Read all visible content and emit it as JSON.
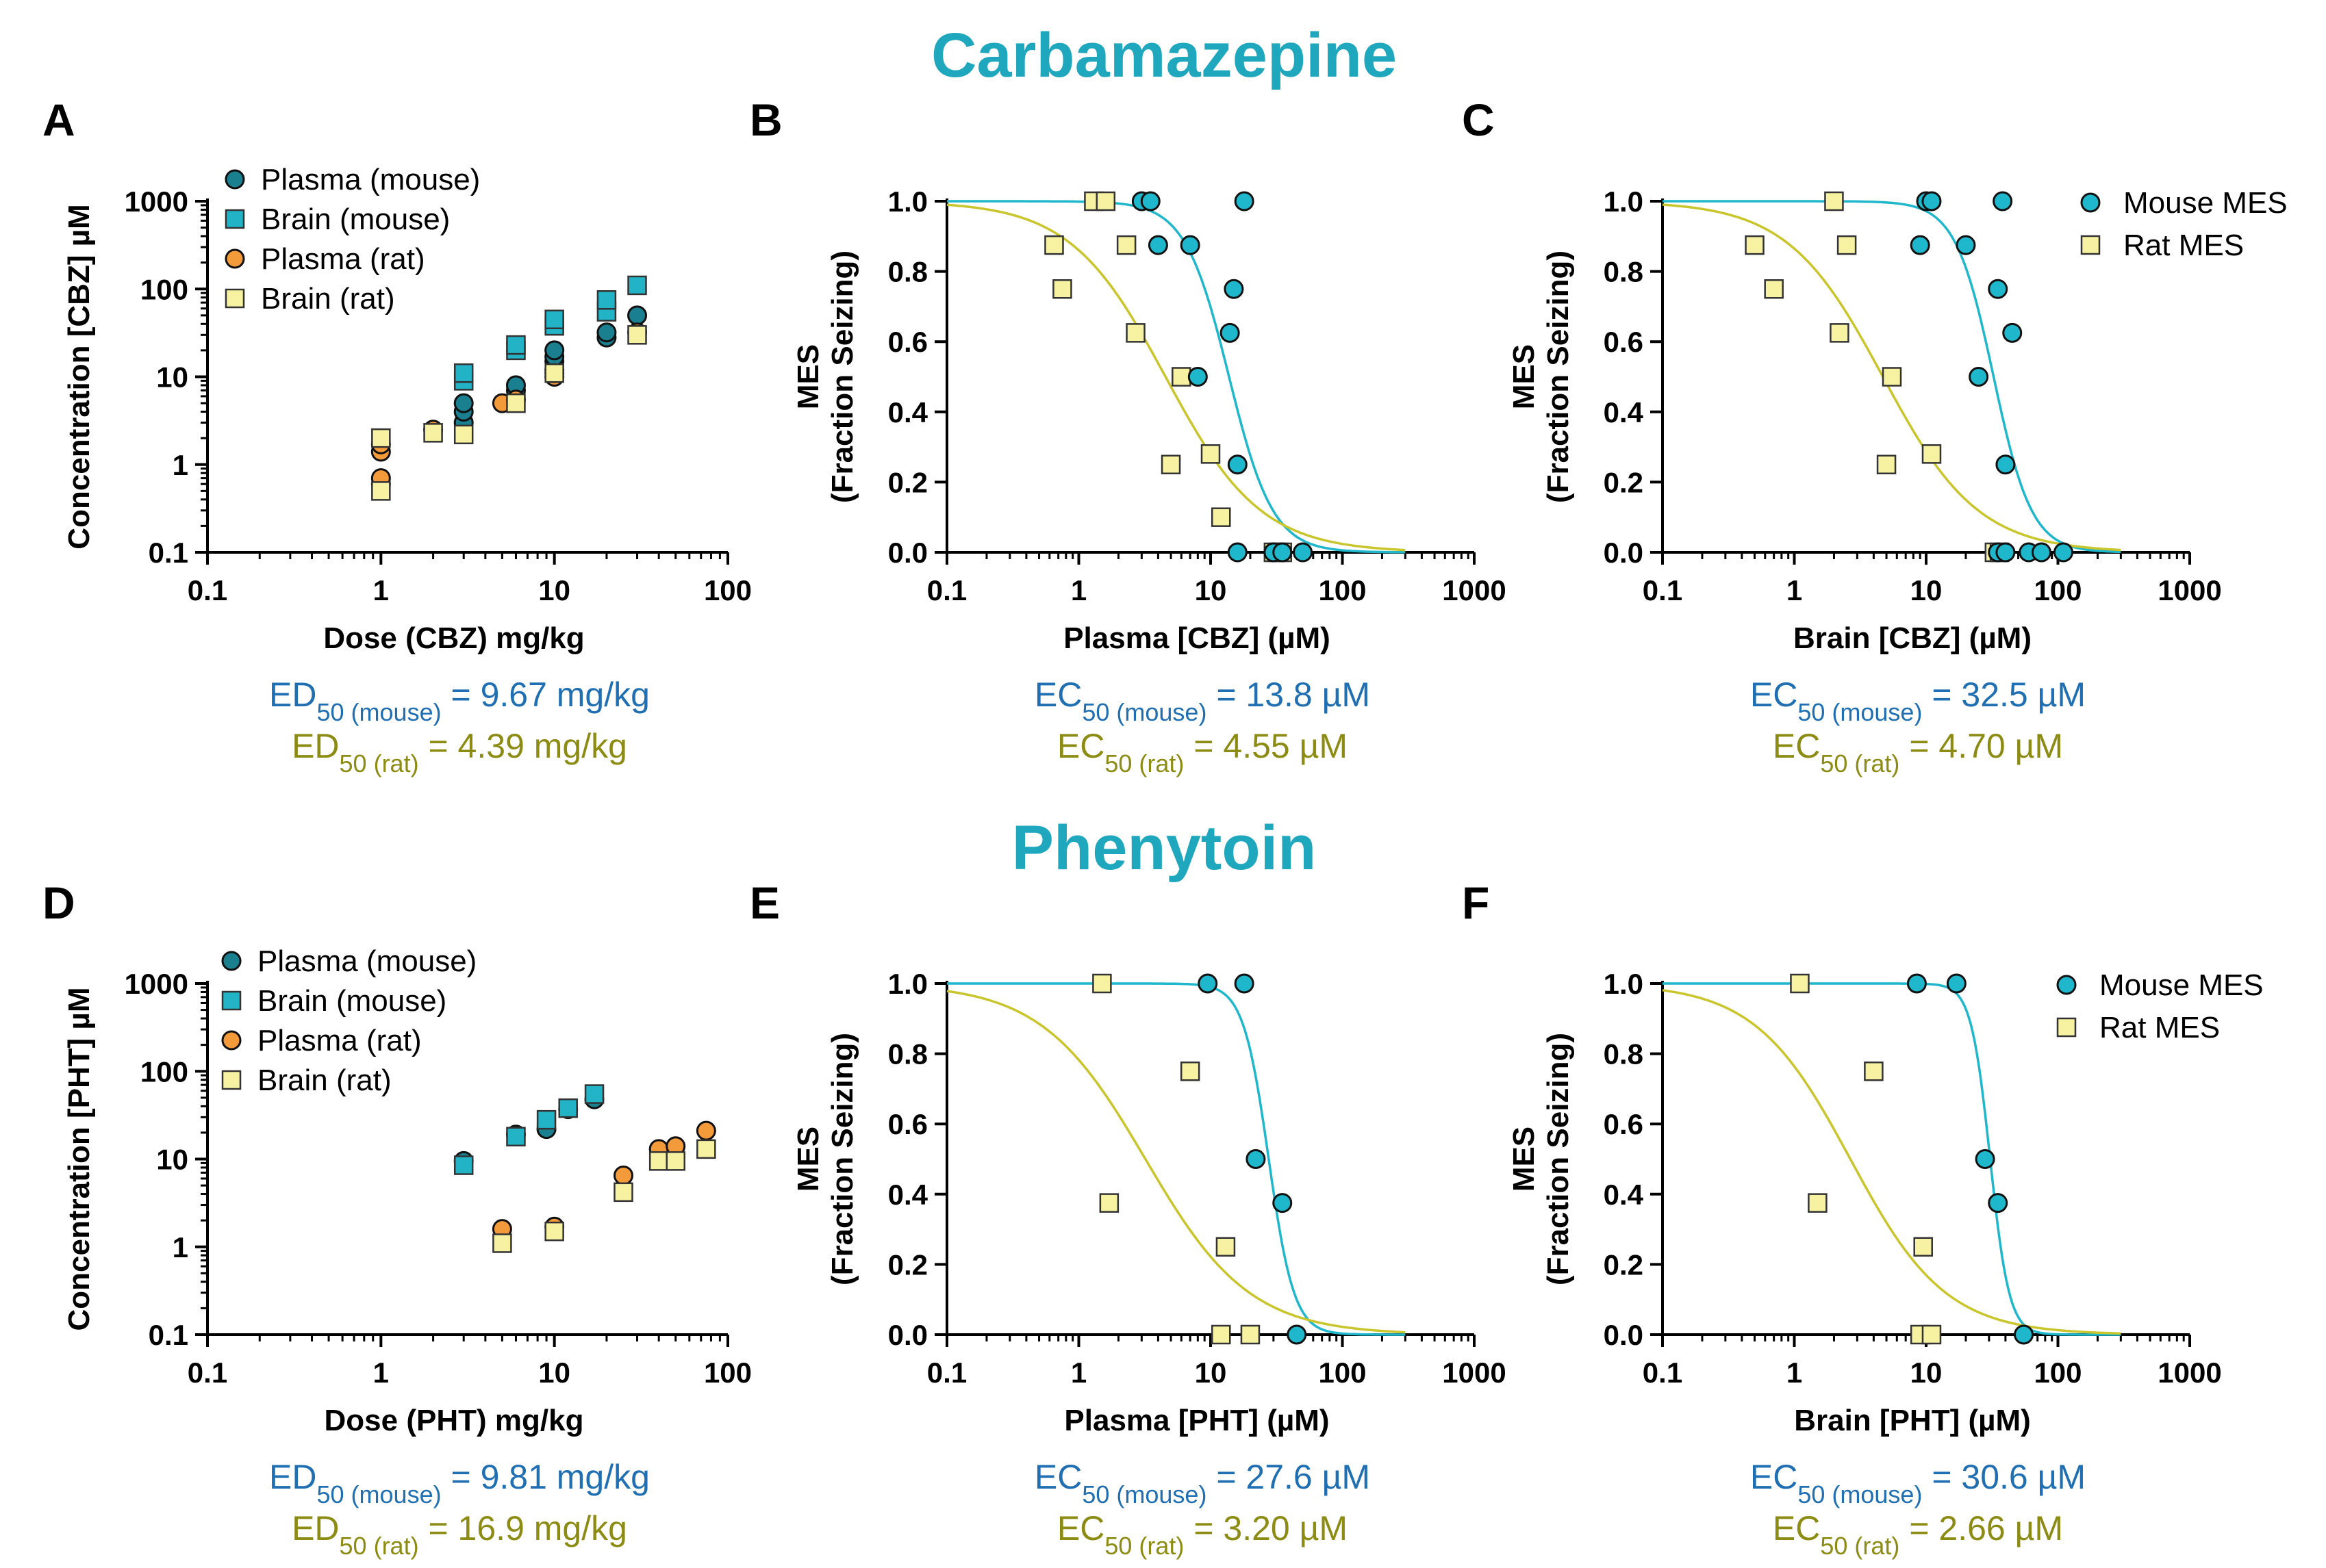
{
  "colors": {
    "title": "#1ea7bd",
    "mouse_text": "#1f6fb2",
    "rat_text": "#8c8c14",
    "mouse_plasma": "#1a7f8e",
    "mouse_brain": "#23b3c6",
    "rat_plasma": "#f39a3b",
    "rat_brain": "#f6f2a2",
    "mouse_curve": "#1fb7cb",
    "rat_curve": "#c9c52d",
    "mouse_mes": "#1fb7cb",
    "rat_mes": "#f6f2a2"
  },
  "sections": [
    {
      "title": "Carbamazepine"
    },
    {
      "title": "Phenytoin"
    }
  ],
  "legend_exposure": {
    "plasma_mouse": "Plasma (mouse)",
    "brain_mouse": "Brain (mouse)",
    "plasma_rat": "Plasma (rat)",
    "brain_rat": "Brain (rat)"
  },
  "legend_mes": {
    "mouse": "Mouse MES",
    "rat": "Rat MES"
  },
  "chart_data": [
    {
      "panel": "A",
      "type": "scatter",
      "drug": "Carbamazepine",
      "xlabel": "Dose (CBZ) mg/kg",
      "ylabel": "Concentration [CBZ] µM",
      "xscale": "log",
      "yscale": "log",
      "xlim": [
        0.1,
        100
      ],
      "ylim": [
        0.1,
        1000
      ],
      "xticks": [
        "0.1",
        "1",
        "10",
        "100"
      ],
      "yticks": [
        "0.1",
        "1",
        "10",
        "100",
        "1000"
      ],
      "series": [
        {
          "name": "Plasma (mouse)",
          "marker": "circle",
          "color": "mouse_plasma",
          "points": [
            [
              3,
              3
            ],
            [
              3,
              4
            ],
            [
              3,
              5
            ],
            [
              6,
              7
            ],
            [
              6,
              8
            ],
            [
              10,
              12
            ],
            [
              10,
              15
            ],
            [
              10,
              17
            ],
            [
              10,
              20
            ],
            [
              20,
              28
            ],
            [
              20,
              32
            ],
            [
              30,
              50
            ]
          ]
        },
        {
          "name": "Brain (mouse)",
          "marker": "square",
          "color": "mouse_brain",
          "points": [
            [
              3,
              9
            ],
            [
              3,
              11
            ],
            [
              6,
              20
            ],
            [
              6,
              23
            ],
            [
              10,
              38
            ],
            [
              10,
              45
            ],
            [
              20,
              55
            ],
            [
              20,
              75
            ],
            [
              30,
              110
            ]
          ]
        },
        {
          "name": "Plasma (rat)",
          "marker": "circle",
          "color": "rat_plasma",
          "points": [
            [
              1,
              0.6
            ],
            [
              1,
              0.7
            ],
            [
              1,
              1.4
            ],
            [
              1,
              1.7
            ],
            [
              2,
              2.5
            ],
            [
              5,
              5
            ],
            [
              6,
              5.5
            ],
            [
              10,
              10
            ],
            [
              10,
              11
            ],
            [
              30,
              32
            ]
          ]
        },
        {
          "name": "Brain (rat)",
          "marker": "square",
          "color": "rat_brain",
          "points": [
            [
              1,
              0.5
            ],
            [
              1,
              2
            ],
            [
              2,
              2.3
            ],
            [
              3,
              2.2
            ],
            [
              6,
              5
            ],
            [
              10,
              11
            ],
            [
              30,
              30
            ]
          ]
        }
      ],
      "stats": [
        {
          "main": "ED",
          "sub": "50 (mouse)",
          "value": " = 9.67 mg/kg",
          "color": "mouse_text"
        },
        {
          "main": "ED",
          "sub": "50 (rat)",
          "value": " = 4.39 mg/kg",
          "color": "rat_text"
        }
      ]
    },
    {
      "panel": "B",
      "type": "scatter",
      "drug": "Carbamazepine",
      "xlabel": "Plasma [CBZ] (µM)",
      "ylabel": [
        "MES",
        "(Fraction Seizing)"
      ],
      "xscale": "log",
      "yscale": "linear",
      "xlim": [
        0.1,
        1000
      ],
      "ylim": [
        0,
        1
      ],
      "xticks": [
        "0.1",
        "1",
        "10",
        "100",
        "1000"
      ],
      "yticks": [
        "0.0",
        "0.2",
        "0.4",
        "0.6",
        "0.8",
        "1.0"
      ],
      "series": [
        {
          "name": "Mouse MES",
          "marker": "circle",
          "color": "mouse_mes",
          "points": [
            [
              3,
              1
            ],
            [
              3.5,
              1
            ],
            [
              4,
              0.875
            ],
            [
              7,
              0.875
            ],
            [
              18,
              1
            ],
            [
              8,
              0.5
            ],
            [
              15,
              0.75
            ],
            [
              14,
              0.625
            ],
            [
              16,
              0.25
            ],
            [
              16,
              0
            ],
            [
              30,
              0
            ],
            [
              50,
              0
            ],
            [
              35,
              0
            ]
          ]
        },
        {
          "name": "Rat MES",
          "marker": "square",
          "color": "rat_mes",
          "points": [
            [
              0.65,
              0.875
            ],
            [
              0.75,
              0.75
            ],
            [
              1.3,
              1
            ],
            [
              1.6,
              1
            ],
            [
              2.3,
              0.875
            ],
            [
              2.7,
              0.625
            ],
            [
              6,
              0.5
            ],
            [
              5,
              0.25
            ],
            [
              10,
              0.28
            ],
            [
              12,
              0.1
            ],
            [
              30,
              0
            ],
            [
              33,
              0
            ],
            [
              35,
              0
            ]
          ]
        }
      ],
      "curves": [
        {
          "name": "Mouse MES fit",
          "ec50": 13.8,
          "hill": 2.6,
          "color": "mouse_curve"
        },
        {
          "name": "Rat MES fit",
          "ec50": 4.55,
          "hill": 1.2,
          "color": "rat_curve"
        }
      ],
      "stats": [
        {
          "main": "EC",
          "sub": "50 (mouse)",
          "value": " = 13.8 µM",
          "color": "mouse_text"
        },
        {
          "main": "EC",
          "sub": "50 (rat)",
          "value": " = 4.55 µM",
          "color": "rat_text"
        }
      ]
    },
    {
      "panel": "C",
      "type": "scatter",
      "drug": "Carbamazepine",
      "xlabel": "Brain [CBZ] (µM)",
      "ylabel": [
        "MES",
        "(Fraction Seizing)"
      ],
      "xscale": "log",
      "yscale": "linear",
      "xlim": [
        0.1,
        1000
      ],
      "ylim": [
        0,
        1
      ],
      "xticks": [
        "0.1",
        "1",
        "10",
        "100",
        "1000"
      ],
      "yticks": [
        "0.0",
        "0.2",
        "0.4",
        "0.6",
        "0.8",
        "1.0"
      ],
      "series": [
        {
          "name": "Mouse MES",
          "marker": "circle",
          "color": "mouse_mes",
          "points": [
            [
              10,
              1
            ],
            [
              11,
              1
            ],
            [
              38,
              1
            ],
            [
              9,
              0.875
            ],
            [
              20,
              0.875
            ],
            [
              35,
              0.75
            ],
            [
              25,
              0.5
            ],
            [
              45,
              0.625
            ],
            [
              40,
              0.25
            ],
            [
              35,
              0
            ],
            [
              40,
              0
            ],
            [
              60,
              0
            ],
            [
              75,
              0
            ],
            [
              110,
              0
            ]
          ]
        },
        {
          "name": "Rat MES",
          "marker": "square",
          "color": "rat_mes",
          "points": [
            [
              2,
              1
            ],
            [
              0.5,
              0.875
            ],
            [
              0.7,
              0.75
            ],
            [
              2.5,
              0.875
            ],
            [
              2.2,
              0.625
            ],
            [
              5.5,
              0.5
            ],
            [
              5,
              0.25
            ],
            [
              11,
              0.28
            ],
            [
              33,
              0
            ],
            [
              36,
              0
            ]
          ]
        }
      ],
      "curves": [
        {
          "name": "Mouse MES fit",
          "ec50": 32.5,
          "hill": 3.0,
          "color": "mouse_curve"
        },
        {
          "name": "Rat MES fit",
          "ec50": 4.7,
          "hill": 1.2,
          "color": "rat_curve"
        }
      ],
      "stats": [
        {
          "main": "EC",
          "sub": "50 (mouse)",
          "value": " = 32.5 µM",
          "color": "mouse_text"
        },
        {
          "main": "EC",
          "sub": "50 (rat)",
          "value": " = 4.70 µM",
          "color": "rat_text"
        }
      ]
    },
    {
      "panel": "D",
      "type": "scatter",
      "drug": "Phenytoin",
      "xlabel": "Dose (PHT) mg/kg",
      "ylabel": "Concentration [PHT] µM",
      "xscale": "log",
      "yscale": "log",
      "xlim": [
        0.1,
        100
      ],
      "ylim": [
        0.1,
        1000
      ],
      "xticks": [
        "0.1",
        "1",
        "10",
        "100"
      ],
      "yticks": [
        "0.1",
        "1",
        "10",
        "100",
        "1000"
      ],
      "series": [
        {
          "name": "Plasma (mouse)",
          "marker": "circle",
          "color": "mouse_plasma",
          "points": [
            [
              3,
              9.5
            ],
            [
              6,
              19
            ],
            [
              9,
              22
            ],
            [
              12,
              37
            ],
            [
              17,
              48
            ]
          ]
        },
        {
          "name": "Brain (mouse)",
          "marker": "square",
          "color": "mouse_brain",
          "points": [
            [
              3,
              8.5
            ],
            [
              6,
              18
            ],
            [
              9,
              28
            ],
            [
              12,
              38
            ],
            [
              17,
              55
            ]
          ]
        },
        {
          "name": "Plasma (rat)",
          "marker": "circle",
          "color": "rat_plasma",
          "points": [
            [
              5,
              1.6
            ],
            [
              10,
              1.7
            ],
            [
              25,
              6.5
            ],
            [
              40,
              13
            ],
            [
              50,
              14
            ],
            [
              75,
              21
            ]
          ]
        },
        {
          "name": "Brain (rat)",
          "marker": "square",
          "color": "rat_brain",
          "points": [
            [
              5,
              1.1
            ],
            [
              10,
              1.5
            ],
            [
              25,
              4.2
            ],
            [
              40,
              9.5
            ],
            [
              50,
              9.5
            ],
            [
              75,
              13
            ]
          ]
        }
      ],
      "stats": [
        {
          "main": "ED",
          "sub": "50 (mouse)",
          "value": " = 9.81 mg/kg",
          "color": "mouse_text"
        },
        {
          "main": "ED",
          "sub": "50 (rat)",
          "value": " = 16.9 mg/kg",
          "color": "rat_text"
        }
      ]
    },
    {
      "panel": "E",
      "type": "scatter",
      "drug": "Phenytoin",
      "xlabel": "Plasma [PHT] (µM)",
      "ylabel": [
        "MES",
        "(Fraction Seizing)"
      ],
      "xscale": "log",
      "yscale": "linear",
      "xlim": [
        0.1,
        1000
      ],
      "ylim": [
        0,
        1
      ],
      "xticks": [
        "0.1",
        "1",
        "10",
        "100",
        "1000"
      ],
      "yticks": [
        "0.0",
        "0.2",
        "0.4",
        "0.6",
        "0.8",
        "1.0"
      ],
      "series": [
        {
          "name": "Mouse MES",
          "marker": "circle",
          "color": "mouse_mes",
          "points": [
            [
              9.5,
              1
            ],
            [
              18,
              1
            ],
            [
              22,
              0.5
            ],
            [
              35,
              0.375
            ],
            [
              45,
              0
            ]
          ]
        },
        {
          "name": "Rat MES",
          "marker": "square",
          "color": "rat_mes",
          "points": [
            [
              1.5,
              1
            ],
            [
              1.7,
              0.375
            ],
            [
              7,
              0.75
            ],
            [
              13,
              0.25
            ],
            [
              12,
              0
            ],
            [
              20,
              0
            ]
          ]
        }
      ],
      "curves": [
        {
          "name": "Mouse MES fit",
          "ec50": 27.6,
          "hill": 4.5,
          "color": "mouse_curve"
        },
        {
          "name": "Rat MES fit",
          "ec50": 3.2,
          "hill": 1.1,
          "color": "rat_curve"
        }
      ],
      "stats": [
        {
          "main": "EC",
          "sub": "50 (mouse)",
          "value": " = 27.6 µM",
          "color": "mouse_text"
        },
        {
          "main": "EC",
          "sub": "50 (rat)",
          "value": " = 3.20 µM",
          "color": "rat_text"
        }
      ]
    },
    {
      "panel": "F",
      "type": "scatter",
      "drug": "Phenytoin",
      "xlabel": "Brain [PHT] (µM)",
      "ylabel": [
        "MES",
        "(Fraction Seizing)"
      ],
      "xscale": "log",
      "yscale": "linear",
      "xlim": [
        0.1,
        1000
      ],
      "ylim": [
        0,
        1
      ],
      "xticks": [
        "0.1",
        "1",
        "10",
        "100",
        "1000"
      ],
      "yticks": [
        "0.0",
        "0.2",
        "0.4",
        "0.6",
        "0.8",
        "1.0"
      ],
      "series": [
        {
          "name": "Mouse MES",
          "marker": "circle",
          "color": "mouse_mes",
          "points": [
            [
              8.5,
              1
            ],
            [
              17,
              1
            ],
            [
              28,
              0.5
            ],
            [
              35,
              0.375
            ],
            [
              55,
              0
            ]
          ]
        },
        {
          "name": "Rat MES",
          "marker": "square",
          "color": "rat_mes",
          "points": [
            [
              1.1,
              1
            ],
            [
              1.5,
              0.375
            ],
            [
              4,
              0.75
            ],
            [
              9.5,
              0.25
            ],
            [
              9,
              0
            ],
            [
              11,
              0
            ]
          ]
        }
      ],
      "curves": [
        {
          "name": "Mouse MES fit",
          "ec50": 30.6,
          "hill": 6.0,
          "color": "mouse_curve"
        },
        {
          "name": "Rat MES fit",
          "ec50": 2.66,
          "hill": 1.2,
          "color": "rat_curve"
        }
      ],
      "stats": [
        {
          "main": "EC",
          "sub": "50 (mouse)",
          "value": " = 30.6 µM",
          "color": "mouse_text"
        },
        {
          "main": "EC",
          "sub": "50 (rat)",
          "value": " = 2.66 µM",
          "color": "rat_text"
        }
      ]
    }
  ]
}
